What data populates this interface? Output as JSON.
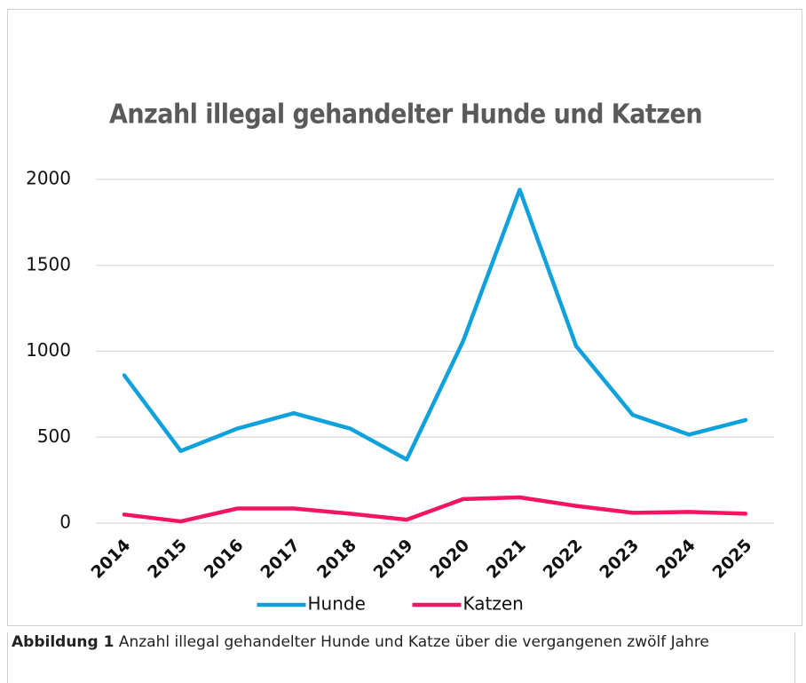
{
  "chart_data": {
    "type": "line",
    "title": "Anzahl illegal gehandelter Hunde und Katzen",
    "categories": [
      "2014",
      "2015",
      "2016",
      "2017",
      "2018",
      "2019",
      "2020",
      "2021",
      "2022",
      "2023",
      "2024",
      "2025"
    ],
    "series": [
      {
        "name": "Hunde",
        "color": "#0ea1dc",
        "values": [
          860,
          420,
          550,
          640,
          550,
          370,
          1060,
          1940,
          1030,
          630,
          515,
          600
        ]
      },
      {
        "name": "Katzen",
        "color": "#f5145f",
        "values": [
          50,
          10,
          85,
          85,
          55,
          20,
          140,
          150,
          100,
          60,
          65,
          55
        ]
      }
    ],
    "ylim": [
      0,
      2000
    ],
    "yticks": [
      0,
      500,
      1000,
      1500,
      2000
    ],
    "grid": true,
    "legend": "bottom"
  },
  "caption": {
    "label": "Abbildung 1",
    "text": "Anzahl illegal gehandelter Hunde und Katze über die vergangenen zwölf Jahre"
  }
}
